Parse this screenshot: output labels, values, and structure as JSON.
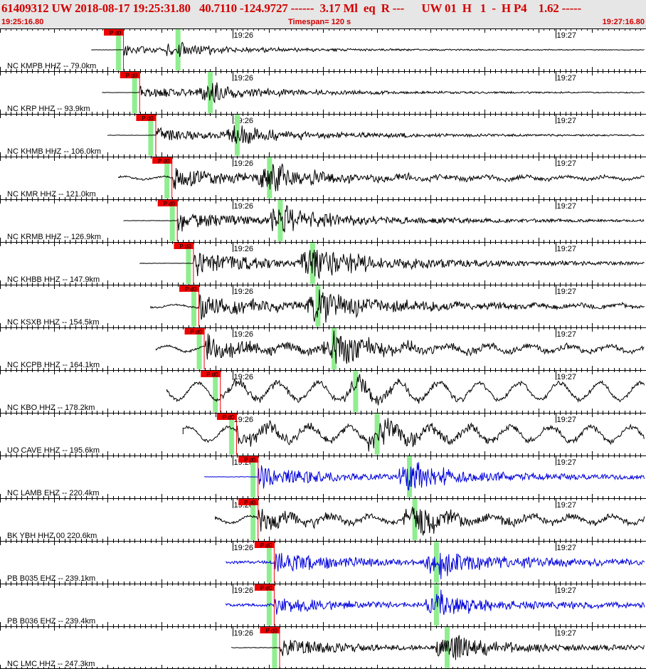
{
  "header": {
    "title_line": "61409312 UW 2018-08-17 19:25:31.80   40.7110 -124.9727 ------  3.17 Ml  eq  R ---      UW 01  H   1  -  H P4    1.62 -----",
    "start_time": "19:25:16.80",
    "timespan": "Timespan= 120 s",
    "end_time": "19:27:16.80"
  },
  "colors": {
    "header_red": "#d20000",
    "phase_band": "#90ee90",
    "pick_flag": "#ee0000",
    "trace_black": "#000000",
    "trace_blue": "#0000dd"
  },
  "time_labels": {
    "minute_1": "19:26",
    "minute_2": "19:27"
  },
  "pick_label": "P d0",
  "stations": [
    {
      "label": "NC KMPB HHZ -- 79.0km",
      "color": "black",
      "p_time_s": 23,
      "s_time_s": 33,
      "trace_start_s": 17,
      "amp": 10,
      "noise": 0.2,
      "wavy": 0
    },
    {
      "label": "NC KRP HHZ -- 93.9km",
      "color": "black",
      "p_time_s": 26,
      "s_time_s": 39,
      "trace_start_s": 19,
      "amp": 14,
      "noise": 0.2,
      "wavy": 0
    },
    {
      "label": "NC KHMB HHZ -- 106.0km",
      "color": "black",
      "p_time_s": 29,
      "s_time_s": 44,
      "trace_start_s": 20,
      "amp": 16,
      "noise": 0.2,
      "wavy": 0
    },
    {
      "label": "NC KMR HHZ -- 121.0km",
      "color": "black",
      "p_time_s": 32,
      "s_time_s": 50,
      "trace_start_s": 22,
      "amp": 22,
      "noise": 1.2,
      "wavy": 2
    },
    {
      "label": "NC KRMB HHZ -- 126.9km",
      "color": "black",
      "p_time_s": 33,
      "s_time_s": 52,
      "trace_start_s": 23,
      "amp": 22,
      "noise": 0.3,
      "wavy": 0
    },
    {
      "label": "NC KHBB HHZ -- 147.9km",
      "color": "black",
      "p_time_s": 36,
      "s_time_s": 58,
      "trace_start_s": 26,
      "amp": 28,
      "noise": 0.3,
      "wavy": 0
    },
    {
      "label": "NC KSXB HHZ -- 154.5km",
      "color": "black",
      "p_time_s": 37,
      "s_time_s": 59,
      "trace_start_s": 28,
      "amp": 26,
      "noise": 1.2,
      "wavy": 2
    },
    {
      "label": "NC KCPB HHZ -- 164.1km",
      "color": "black",
      "p_time_s": 38,
      "s_time_s": 62,
      "trace_start_s": 29,
      "amp": 26,
      "noise": 1.5,
      "wavy": 4
    },
    {
      "label": "NC KBO HHZ -- 178.2km",
      "color": "black",
      "p_time_s": 41,
      "s_time_s": 66,
      "trace_start_s": 31,
      "amp": 12,
      "noise": 2,
      "wavy": 12
    },
    {
      "label": "UO CAVE HHZ -- 195.6km",
      "color": "black",
      "p_time_s": 44,
      "s_time_s": 70,
      "trace_start_s": 34,
      "amp": 20,
      "noise": 2,
      "wavy": 10
    },
    {
      "label": "NC LAMB EHZ -- 220.4km",
      "color": "blue",
      "p_time_s": 48,
      "s_time_s": 76,
      "trace_start_s": 38,
      "amp": 24,
      "noise": 0.3,
      "wavy": 0
    },
    {
      "label": "BK YBH HHZ 00 220.6km",
      "color": "black",
      "p_time_s": 48,
      "s_time_s": 77,
      "trace_start_s": 40,
      "amp": 22,
      "noise": 1.5,
      "wavy": 5
    },
    {
      "label": "PB B035 EHZ -- 239.1km",
      "color": "blue",
      "p_time_s": 51,
      "s_time_s": 81,
      "trace_start_s": 42,
      "amp": 24,
      "noise": 2,
      "wavy": 0
    },
    {
      "label": "PB B036 EHZ -- 239.4km",
      "color": "blue",
      "p_time_s": 51,
      "s_time_s": 81,
      "trace_start_s": 42,
      "amp": 20,
      "noise": 2,
      "wavy": 0
    },
    {
      "label": "NC LMC HHZ -- 247.3km",
      "color": "black",
      "p_time_s": 52,
      "s_time_s": 83,
      "trace_start_s": 43,
      "amp": 22,
      "noise": 0.4,
      "wavy": 0
    }
  ]
}
